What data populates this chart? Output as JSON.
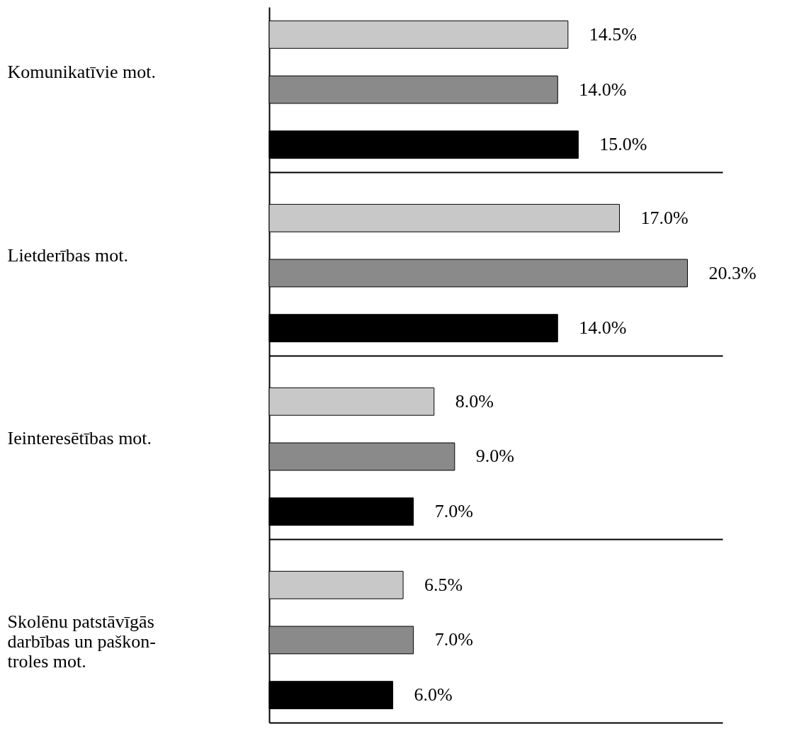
{
  "chart_data": {
    "type": "bar",
    "orientation": "horizontal",
    "grid": "y",
    "categories": [
      "Komunikatīvie mot.",
      "Lietderības mot.",
      "Ieinteresētības mot.",
      "Skolēnu patstāvīgās\ndarbības un paškon-\ntroles mot."
    ],
    "series": [
      {
        "color": "#c8c8c8",
        "values": [
          14.5,
          17.0,
          8.0,
          6.5
        ],
        "value_labels": [
          "14.5%",
          "17.0%",
          "8.0%",
          "6.5%"
        ]
      },
      {
        "color": "#8a8a8a",
        "values": [
          14.0,
          20.3,
          9.0,
          7.0
        ],
        "value_labels": [
          "14.0%",
          "20.3%",
          "9.0%",
          "7.0%"
        ]
      },
      {
        "color": "#000000",
        "values": [
          15.0,
          14.0,
          7.0,
          6.0
        ],
        "value_labels": [
          "15.0%",
          "14.0%",
          "7.0%",
          "6.0%"
        ]
      }
    ]
  }
}
